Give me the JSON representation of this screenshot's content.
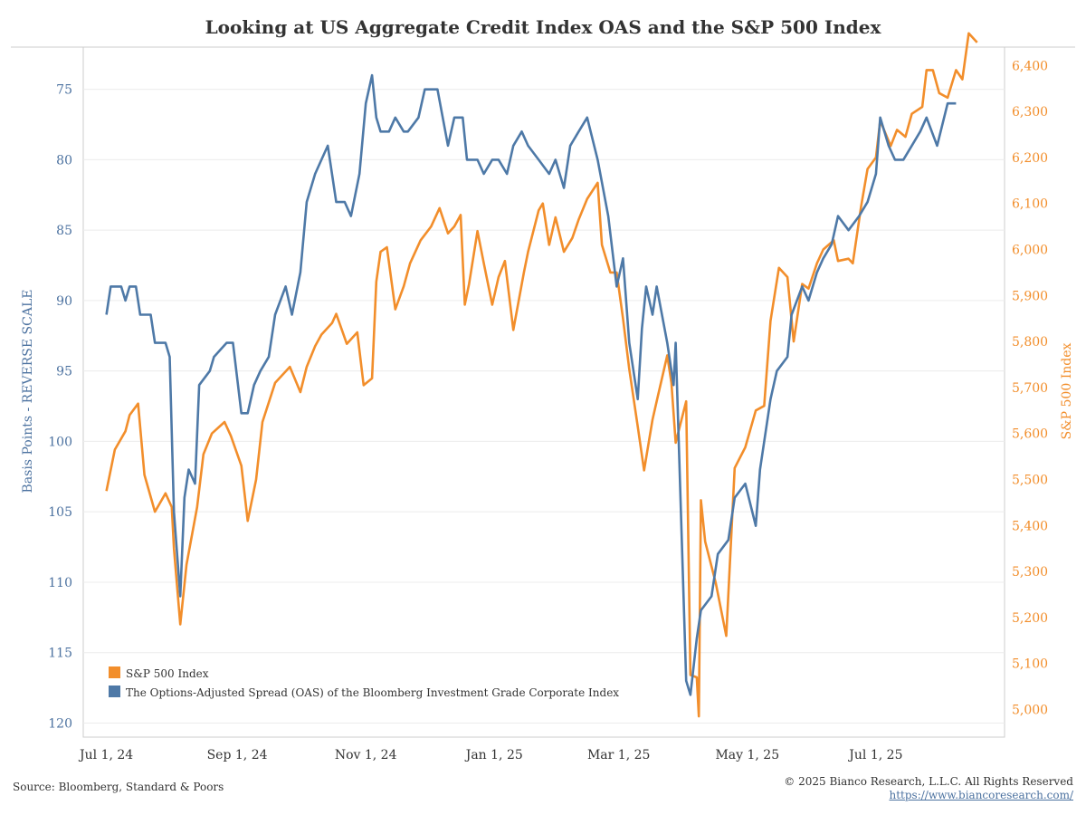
{
  "chart_data": {
    "type": "line",
    "title": "Looking at US Aggregate Credit Index OAS and the S&P 500 Index",
    "ylabel_left": "Basis Points - REVERSE SCALE",
    "ylabel_right": "S&P 500 Index",
    "left_axis": {
      "ylim": [
        72,
        121
      ],
      "reversed": true,
      "ticks": [
        75,
        80,
        85,
        90,
        95,
        100,
        105,
        110,
        115,
        120
      ]
    },
    "right_axis": {
      "ylim": [
        4940,
        6440
      ],
      "reversed": false,
      "ticks": [
        5000,
        5100,
        5200,
        5300,
        5400,
        5500,
        5600,
        5700,
        5800,
        5900,
        6000,
        6100,
        6200,
        6300,
        6400
      ],
      "tick_labels": [
        "5,000",
        "5,100",
        "5,200",
        "5,300",
        "5,400",
        "5,500",
        "5,600",
        "5,700",
        "5,800",
        "5,900",
        "6,000",
        "6,100",
        "6,200",
        "6,300",
        "6,400"
      ]
    },
    "x_axis": {
      "range": [
        "2024-06-20",
        "2025-08-31"
      ],
      "ticks": [
        {
          "date": "2024-07-01",
          "label": "Jul 1, 24"
        },
        {
          "date": "2024-09-01",
          "label": "Sep 1, 24"
        },
        {
          "date": "2024-11-01",
          "label": "Nov 1, 24"
        },
        {
          "date": "2025-01-01",
          "label": "Jan 1, 25"
        },
        {
          "date": "2025-03-01",
          "label": "Mar 1, 25"
        },
        {
          "date": "2025-05-01",
          "label": "May 1, 25"
        },
        {
          "date": "2025-07-01",
          "label": "Jul 1, 25"
        }
      ]
    },
    "grid": true,
    "legend": {
      "position": "bottom-left"
    },
    "series": [
      {
        "name": "S&P 500 Index",
        "axis": "right",
        "color": "#f28e2b",
        "points": [
          [
            "2024-07-01",
            5475
          ],
          [
            "2024-07-05",
            5565
          ],
          [
            "2024-07-10",
            5605
          ],
          [
            "2024-07-12",
            5640
          ],
          [
            "2024-07-16",
            5665
          ],
          [
            "2024-07-19",
            5510
          ],
          [
            "2024-07-24",
            5430
          ],
          [
            "2024-07-29",
            5470
          ],
          [
            "2024-08-01",
            5440
          ],
          [
            "2024-08-02",
            5350
          ],
          [
            "2024-08-05",
            5185
          ],
          [
            "2024-08-08",
            5315
          ],
          [
            "2024-08-13",
            5440
          ],
          [
            "2024-08-16",
            5555
          ],
          [
            "2024-08-20",
            5600
          ],
          [
            "2024-08-26",
            5625
          ],
          [
            "2024-08-29",
            5595
          ],
          [
            "2024-09-03",
            5530
          ],
          [
            "2024-09-06",
            5410
          ],
          [
            "2024-09-10",
            5500
          ],
          [
            "2024-09-13",
            5625
          ],
          [
            "2024-09-19",
            5710
          ],
          [
            "2024-09-26",
            5745
          ],
          [
            "2024-10-01",
            5690
          ],
          [
            "2024-10-04",
            5745
          ],
          [
            "2024-10-08",
            5790
          ],
          [
            "2024-10-11",
            5815
          ],
          [
            "2024-10-16",
            5840
          ],
          [
            "2024-10-18",
            5860
          ],
          [
            "2024-10-23",
            5795
          ],
          [
            "2024-10-28",
            5820
          ],
          [
            "2024-10-31",
            5705
          ],
          [
            "2024-11-04",
            5720
          ],
          [
            "2024-11-06",
            5930
          ],
          [
            "2024-11-08",
            5995
          ],
          [
            "2024-11-11",
            6005
          ],
          [
            "2024-11-15",
            5870
          ],
          [
            "2024-11-19",
            5920
          ],
          [
            "2024-11-22",
            5970
          ],
          [
            "2024-11-27",
            6020
          ],
          [
            "2024-12-02",
            6050
          ],
          [
            "2024-12-06",
            6090
          ],
          [
            "2024-12-10",
            6035
          ],
          [
            "2024-12-13",
            6050
          ],
          [
            "2024-12-16",
            6075
          ],
          [
            "2024-12-18",
            5880
          ],
          [
            "2024-12-20",
            5925
          ],
          [
            "2024-12-24",
            6040
          ],
          [
            "2024-12-27",
            5970
          ],
          [
            "2024-12-31",
            5880
          ],
          [
            "2025-01-03",
            5940
          ],
          [
            "2025-01-06",
            5975
          ],
          [
            "2025-01-10",
            5825
          ],
          [
            "2025-01-15",
            5950
          ],
          [
            "2025-01-17",
            5995
          ],
          [
            "2025-01-22",
            6085
          ],
          [
            "2025-01-24",
            6100
          ],
          [
            "2025-01-27",
            6010
          ],
          [
            "2025-01-30",
            6070
          ],
          [
            "2025-02-03",
            5995
          ],
          [
            "2025-02-07",
            6025
          ],
          [
            "2025-02-10",
            6065
          ],
          [
            "2025-02-14",
            6110
          ],
          [
            "2025-02-19",
            6145
          ],
          [
            "2025-02-21",
            6010
          ],
          [
            "2025-02-25",
            5950
          ],
          [
            "2025-02-28",
            5950
          ],
          [
            "2025-03-03",
            5850
          ],
          [
            "2025-03-06",
            5740
          ],
          [
            "2025-03-10",
            5615
          ],
          [
            "2025-03-13",
            5520
          ],
          [
            "2025-03-17",
            5630
          ],
          [
            "2025-03-19",
            5670
          ],
          [
            "2025-03-24",
            5770
          ],
          [
            "2025-03-26",
            5710
          ],
          [
            "2025-03-28",
            5580
          ],
          [
            "2025-04-02",
            5670
          ],
          [
            "2025-04-04",
            5075
          ],
          [
            "2025-04-07",
            5070
          ],
          [
            "2025-04-08",
            4985
          ],
          [
            "2025-04-09",
            5455
          ],
          [
            "2025-04-11",
            5365
          ],
          [
            "2025-04-16",
            5275
          ],
          [
            "2025-04-21",
            5160
          ],
          [
            "2025-04-25",
            5525
          ],
          [
            "2025-04-30",
            5570
          ],
          [
            "2025-05-05",
            5650
          ],
          [
            "2025-05-09",
            5660
          ],
          [
            "2025-05-12",
            5845
          ],
          [
            "2025-05-16",
            5960
          ],
          [
            "2025-05-20",
            5940
          ],
          [
            "2025-05-23",
            5800
          ],
          [
            "2025-05-27",
            5925
          ],
          [
            "2025-05-30",
            5915
          ],
          [
            "2025-06-03",
            5970
          ],
          [
            "2025-06-06",
            6000
          ],
          [
            "2025-06-11",
            6020
          ],
          [
            "2025-06-13",
            5975
          ],
          [
            "2025-06-18",
            5980
          ],
          [
            "2025-06-20",
            5970
          ],
          [
            "2025-06-24",
            6095
          ],
          [
            "2025-06-27",
            6175
          ],
          [
            "2025-07-01",
            6200
          ],
          [
            "2025-07-03",
            6280
          ],
          [
            "2025-07-08",
            6225
          ],
          [
            "2025-07-11",
            6260
          ],
          [
            "2025-07-15",
            6245
          ],
          [
            "2025-07-18",
            6295
          ],
          [
            "2025-07-23",
            6310
          ],
          [
            "2025-07-25",
            6390
          ],
          [
            "2025-07-28",
            6390
          ],
          [
            "2025-07-31",
            6340
          ],
          [
            "2025-08-04",
            6330
          ],
          [
            "2025-08-08",
            6390
          ],
          [
            "2025-08-11",
            6370
          ],
          [
            "2025-08-14",
            6470
          ],
          [
            "2025-08-18",
            6450
          ]
        ]
      },
      {
        "name": "The Options-Adjusted Spread (OAS) of the Bloomberg Investment Grade Corporate Index",
        "axis": "left",
        "color": "#4e79a7",
        "points": [
          [
            "2024-07-01",
            91
          ],
          [
            "2024-07-03",
            89
          ],
          [
            "2024-07-08",
            89
          ],
          [
            "2024-07-10",
            90
          ],
          [
            "2024-07-12",
            89
          ],
          [
            "2024-07-15",
            89
          ],
          [
            "2024-07-17",
            91
          ],
          [
            "2024-07-22",
            91
          ],
          [
            "2024-07-24",
            93
          ],
          [
            "2024-07-29",
            93
          ],
          [
            "2024-07-31",
            94
          ],
          [
            "2024-08-02",
            105
          ],
          [
            "2024-08-05",
            111
          ],
          [
            "2024-08-07",
            104
          ],
          [
            "2024-08-09",
            102
          ],
          [
            "2024-08-12",
            103
          ],
          [
            "2024-08-14",
            96
          ],
          [
            "2024-08-19",
            95
          ],
          [
            "2024-08-21",
            94
          ],
          [
            "2024-08-27",
            93
          ],
          [
            "2024-08-30",
            93
          ],
          [
            "2024-09-03",
            98
          ],
          [
            "2024-09-06",
            98
          ],
          [
            "2024-09-09",
            96
          ],
          [
            "2024-09-12",
            95
          ],
          [
            "2024-09-16",
            94
          ],
          [
            "2024-09-19",
            91
          ],
          [
            "2024-09-24",
            89
          ],
          [
            "2024-09-27",
            91
          ],
          [
            "2024-10-01",
            88
          ],
          [
            "2024-10-04",
            83
          ],
          [
            "2024-10-08",
            81
          ],
          [
            "2024-10-11",
            80
          ],
          [
            "2024-10-14",
            79
          ],
          [
            "2024-10-18",
            83
          ],
          [
            "2024-10-22",
            83
          ],
          [
            "2024-10-25",
            84
          ],
          [
            "2024-10-29",
            81
          ],
          [
            "2024-11-01",
            76
          ],
          [
            "2024-11-04",
            74
          ],
          [
            "2024-11-06",
            77
          ],
          [
            "2024-11-08",
            78
          ],
          [
            "2024-11-12",
            78
          ],
          [
            "2024-11-15",
            77
          ],
          [
            "2024-11-19",
            78
          ],
          [
            "2024-11-21",
            78
          ],
          [
            "2024-11-26",
            77
          ],
          [
            "2024-11-29",
            75
          ],
          [
            "2024-12-02",
            75
          ],
          [
            "2024-12-05",
            75
          ],
          [
            "2024-12-10",
            79
          ],
          [
            "2024-12-13",
            77
          ],
          [
            "2024-12-17",
            77
          ],
          [
            "2024-12-19",
            80
          ],
          [
            "2024-12-24",
            80
          ],
          [
            "2024-12-27",
            81
          ],
          [
            "2024-12-31",
            80
          ],
          [
            "2025-01-03",
            80
          ],
          [
            "2025-01-07",
            81
          ],
          [
            "2025-01-10",
            79
          ],
          [
            "2025-01-14",
            78
          ],
          [
            "2025-01-17",
            79
          ],
          [
            "2025-01-22",
            80
          ],
          [
            "2025-01-27",
            81
          ],
          [
            "2025-01-30",
            80
          ],
          [
            "2025-02-03",
            82
          ],
          [
            "2025-02-06",
            79
          ],
          [
            "2025-02-10",
            78
          ],
          [
            "2025-02-14",
            77
          ],
          [
            "2025-02-19",
            80
          ],
          [
            "2025-02-24",
            84
          ],
          [
            "2025-02-28",
            89
          ],
          [
            "2025-03-03",
            87
          ],
          [
            "2025-03-06",
            93
          ],
          [
            "2025-03-10",
            97
          ],
          [
            "2025-03-12",
            92
          ],
          [
            "2025-03-14",
            89
          ],
          [
            "2025-03-17",
            91
          ],
          [
            "2025-03-19",
            89
          ],
          [
            "2025-03-24",
            93
          ],
          [
            "2025-03-27",
            96
          ],
          [
            "2025-03-28",
            93
          ],
          [
            "2025-04-02",
            117
          ],
          [
            "2025-04-04",
            118
          ],
          [
            "2025-04-07",
            114
          ],
          [
            "2025-04-09",
            112
          ],
          [
            "2025-04-14",
            111
          ],
          [
            "2025-04-17",
            108
          ],
          [
            "2025-04-22",
            107
          ],
          [
            "2025-04-25",
            104
          ],
          [
            "2025-04-30",
            103
          ],
          [
            "2025-05-05",
            106
          ],
          [
            "2025-05-07",
            102
          ],
          [
            "2025-05-12",
            97
          ],
          [
            "2025-05-15",
            95
          ],
          [
            "2025-05-20",
            94
          ],
          [
            "2025-05-22",
            91
          ],
          [
            "2025-05-27",
            89
          ],
          [
            "2025-05-30",
            90
          ],
          [
            "2025-06-03",
            88
          ],
          [
            "2025-06-06",
            87
          ],
          [
            "2025-06-10",
            86
          ],
          [
            "2025-06-13",
            84
          ],
          [
            "2025-06-18",
            85
          ],
          [
            "2025-06-23",
            84
          ],
          [
            "2025-06-27",
            83
          ],
          [
            "2025-07-01",
            81
          ],
          [
            "2025-07-03",
            77
          ],
          [
            "2025-07-07",
            79
          ],
          [
            "2025-07-10",
            80
          ],
          [
            "2025-07-14",
            80
          ],
          [
            "2025-07-18",
            79
          ],
          [
            "2025-07-22",
            78
          ],
          [
            "2025-07-25",
            77
          ],
          [
            "2025-07-30",
            79
          ],
          [
            "2025-08-04",
            76
          ],
          [
            "2025-08-08",
            76
          ]
        ]
      }
    ]
  },
  "footer": {
    "source": "Source: Bloomberg, Standard & Poors",
    "copyright": "© 2025 Bianco Research, L.L.C. All Rights Reserved",
    "url": "https://www.biancoresearch.com/"
  }
}
